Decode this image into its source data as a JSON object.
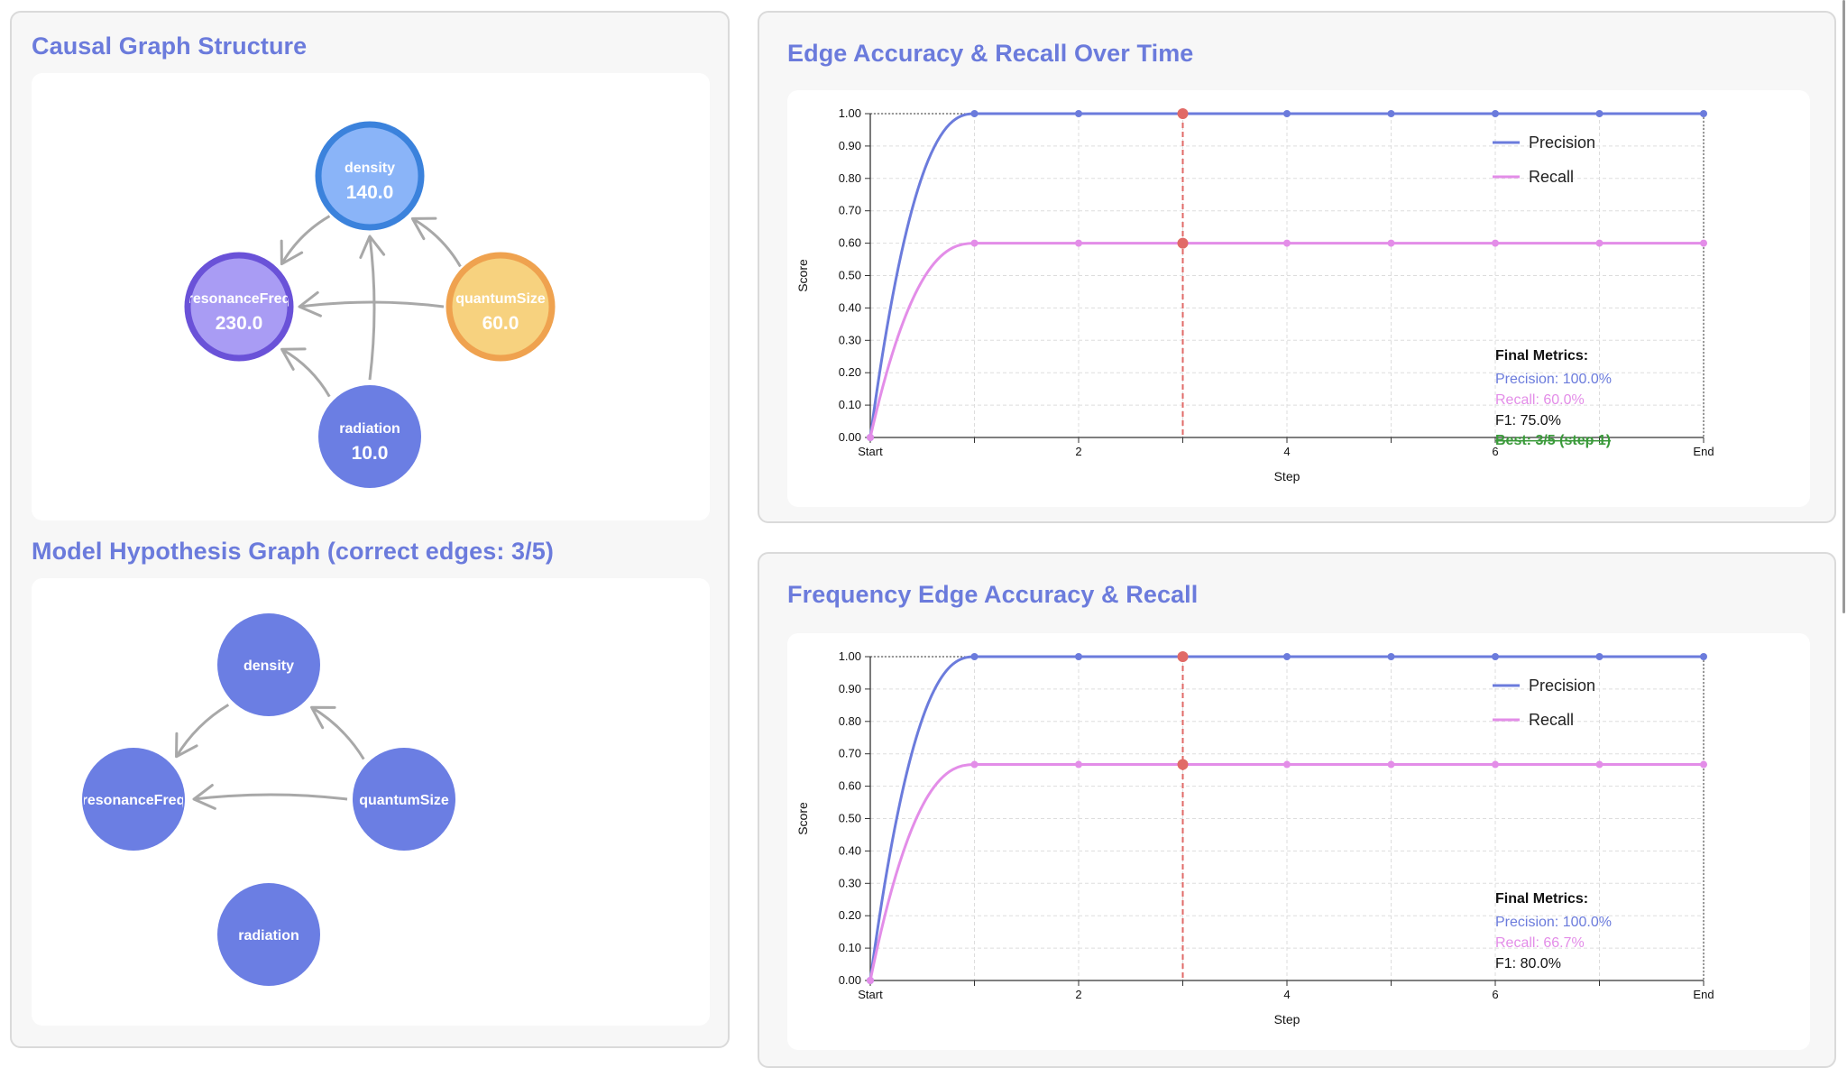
{
  "colors": {
    "accent": "#6b7bdc",
    "precision": "#6b7bdc",
    "recall": "#e38de8",
    "marker": "#e16a67",
    "best": "#3a9a3a",
    "node_blue": "#8ab4f8",
    "node_blue_border": "#3b82dc",
    "node_purple": "#a99cf4",
    "node_purple_border": "#6a52d8",
    "node_orange": "#f7d27f",
    "node_orange_border": "#efa24f",
    "node_plain": "#6b7ee3",
    "edge": "#a8a8a8"
  },
  "causal_graph": {
    "title": "Causal Graph Structure",
    "nodes": [
      {
        "id": "density",
        "label": "density",
        "value": "140.0",
        "style": "blue"
      },
      {
        "id": "resonanceFreq",
        "label": "resonanceFreq",
        "value": "230.0",
        "style": "purple"
      },
      {
        "id": "quantumSize",
        "label": "quantumSize",
        "value": "60.0",
        "style": "orange"
      },
      {
        "id": "radiation",
        "label": "radiation",
        "value": "10.0",
        "style": "plain"
      }
    ],
    "edges": [
      {
        "from": "density",
        "to": "resonanceFreq"
      },
      {
        "from": "quantumSize",
        "to": "density"
      },
      {
        "from": "quantumSize",
        "to": "resonanceFreq"
      },
      {
        "from": "radiation",
        "to": "density"
      },
      {
        "from": "radiation",
        "to": "resonanceFreq"
      }
    ]
  },
  "hypothesis_graph": {
    "title": "Model Hypothesis Graph (correct edges: 3/5)",
    "nodes": [
      {
        "id": "density",
        "label": "density"
      },
      {
        "id": "resonanceFreq",
        "label": "resonanceFreq"
      },
      {
        "id": "quantumSize",
        "label": "quantumSize"
      },
      {
        "id": "radiation",
        "label": "radiation"
      }
    ],
    "edges": [
      {
        "from": "density",
        "to": "resonanceFreq"
      },
      {
        "from": "quantumSize",
        "to": "density"
      },
      {
        "from": "quantumSize",
        "to": "resonanceFreq"
      }
    ]
  },
  "chart_data": [
    {
      "type": "line",
      "title": "Edge Accuracy & Recall Over Time",
      "xlabel": "Step",
      "ylabel": "Score",
      "ylim": [
        0,
        1
      ],
      "x": [
        0,
        1,
        2,
        3,
        4,
        5,
        6,
        7,
        8
      ],
      "x_tick_labels": [
        "Start",
        "2",
        "4",
        "6",
        "End"
      ],
      "y_tick_labels": [
        "0.00",
        "0.10",
        "0.20",
        "0.30",
        "0.40",
        "0.50",
        "0.60",
        "0.70",
        "0.80",
        "0.90",
        "1.00"
      ],
      "grid": true,
      "legend_position": "top-right",
      "highlight_step": 3,
      "series": [
        {
          "name": "Precision",
          "values": [
            0,
            1,
            1,
            1,
            1,
            1,
            1,
            1,
            1
          ]
        },
        {
          "name": "Recall",
          "values": [
            0,
            0.6,
            0.6,
            0.6,
            0.6,
            0.6,
            0.6,
            0.6,
            0.6
          ]
        }
      ],
      "metrics": {
        "heading": "Final Metrics:",
        "precision": "Precision: 100.0%",
        "recall": "Recall: 60.0%",
        "f1": "F1: 75.0%",
        "best": "Best: 3/5 (step 1)"
      }
    },
    {
      "type": "line",
      "title": "Frequency Edge Accuracy & Recall",
      "xlabel": "Step",
      "ylabel": "Score",
      "ylim": [
        0,
        1
      ],
      "x": [
        0,
        1,
        2,
        3,
        4,
        5,
        6,
        7,
        8
      ],
      "x_tick_labels": [
        "Start",
        "2",
        "4",
        "6",
        "End"
      ],
      "y_tick_labels": [
        "0.00",
        "0.10",
        "0.20",
        "0.30",
        "0.40",
        "0.50",
        "0.60",
        "0.70",
        "0.80",
        "0.90",
        "1.00"
      ],
      "grid": true,
      "legend_position": "top-right",
      "highlight_step": 3,
      "series": [
        {
          "name": "Precision",
          "values": [
            0,
            1,
            1,
            1,
            1,
            1,
            1,
            1,
            1
          ]
        },
        {
          "name": "Recall",
          "values": [
            0,
            0.667,
            0.667,
            0.667,
            0.667,
            0.667,
            0.667,
            0.667,
            0.667
          ]
        }
      ],
      "metrics": {
        "heading": "Final Metrics:",
        "precision": "Precision: 100.0%",
        "recall": "Recall: 66.7%",
        "f1": "F1: 80.0%"
      }
    }
  ]
}
